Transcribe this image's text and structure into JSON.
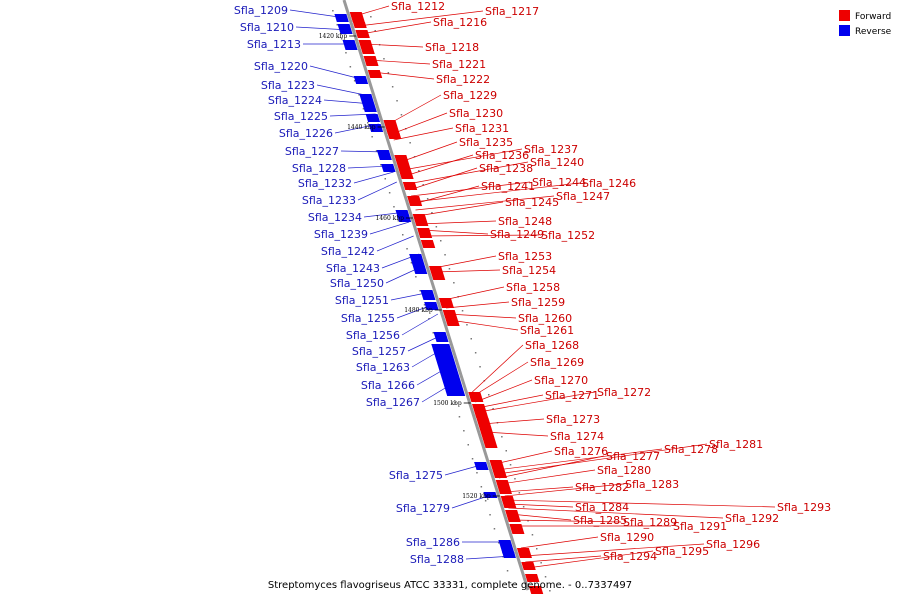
{
  "title": "Streptomyces flavogriseus ATCC 33331, complete genome. - 0..7337497",
  "legend": [
    {
      "label": "Forward",
      "color": "#ee0000"
    },
    {
      "label": "Reverse",
      "color": "#0000ee"
    }
  ],
  "colors": {
    "forward": "#ee0000",
    "reverse": "#0000ee",
    "forward_line": "#dd0000",
    "reverse_line": "#2222cc",
    "backbone": "#999999"
  },
  "ticks": [
    "1420 kbp",
    "1440 kbp",
    "1460 kbp",
    "1480 kbp",
    "1500 kbp",
    "1520 kbp"
  ],
  "reverse_genes": [
    "Sfla_1209",
    "Sfla_1210",
    "Sfla_1213",
    "Sfla_1220",
    "Sfla_1223",
    "Sfla_1224",
    "Sfla_1225",
    "Sfla_1226",
    "Sfla_1227",
    "Sfla_1228",
    "Sfla_1232",
    "Sfla_1233",
    "Sfla_1234",
    "Sfla_1239",
    "Sfla_1242",
    "Sfla_1243",
    "Sfla_1250",
    "Sfla_1251",
    "Sfla_1255",
    "Sfla_1256",
    "Sfla_1257",
    "Sfla_1263",
    "Sfla_1266",
    "Sfla_1267",
    "Sfla_1275",
    "Sfla_1279",
    "Sfla_1286",
    "Sfla_1288"
  ],
  "forward_genes": [
    "Sfla_1212",
    "Sfla_1217",
    "Sfla_1216",
    "Sfla_1218",
    "Sfla_1221",
    "Sfla_1222",
    "Sfla_1229",
    "Sfla_1230",
    "Sfla_1231",
    "Sfla_1235",
    "Sfla_1237",
    "Sfla_1236",
    "Sfla_1240",
    "Sfla_1238",
    "Sfla_1244",
    "Sfla_1246",
    "Sfla_1241",
    "Sfla_1247",
    "Sfla_1245",
    "Sfla_1248",
    "Sfla_1249",
    "Sfla_1252",
    "Sfla_1253",
    "Sfla_1254",
    "Sfla_1258",
    "Sfla_1259",
    "Sfla_1260",
    "Sfla_1261",
    "Sfla_1268",
    "Sfla_1269",
    "Sfla_1270",
    "Sfla_1271",
    "Sfla_1272",
    "Sfla_1273",
    "Sfla_1274",
    "Sfla_1276",
    "Sfla_1278",
    "Sfla_1281",
    "Sfla_1277",
    "Sfla_1280",
    "Sfla_1282",
    "Sfla_1283",
    "Sfla_1293",
    "Sfla_1284",
    "Sfla_1292",
    "Sfla_1285",
    "Sfla_1289",
    "Sfla_1291",
    "Sfla_1290",
    "Sfla_1296",
    "Sfla_1294",
    "Sfla_1295"
  ]
}
